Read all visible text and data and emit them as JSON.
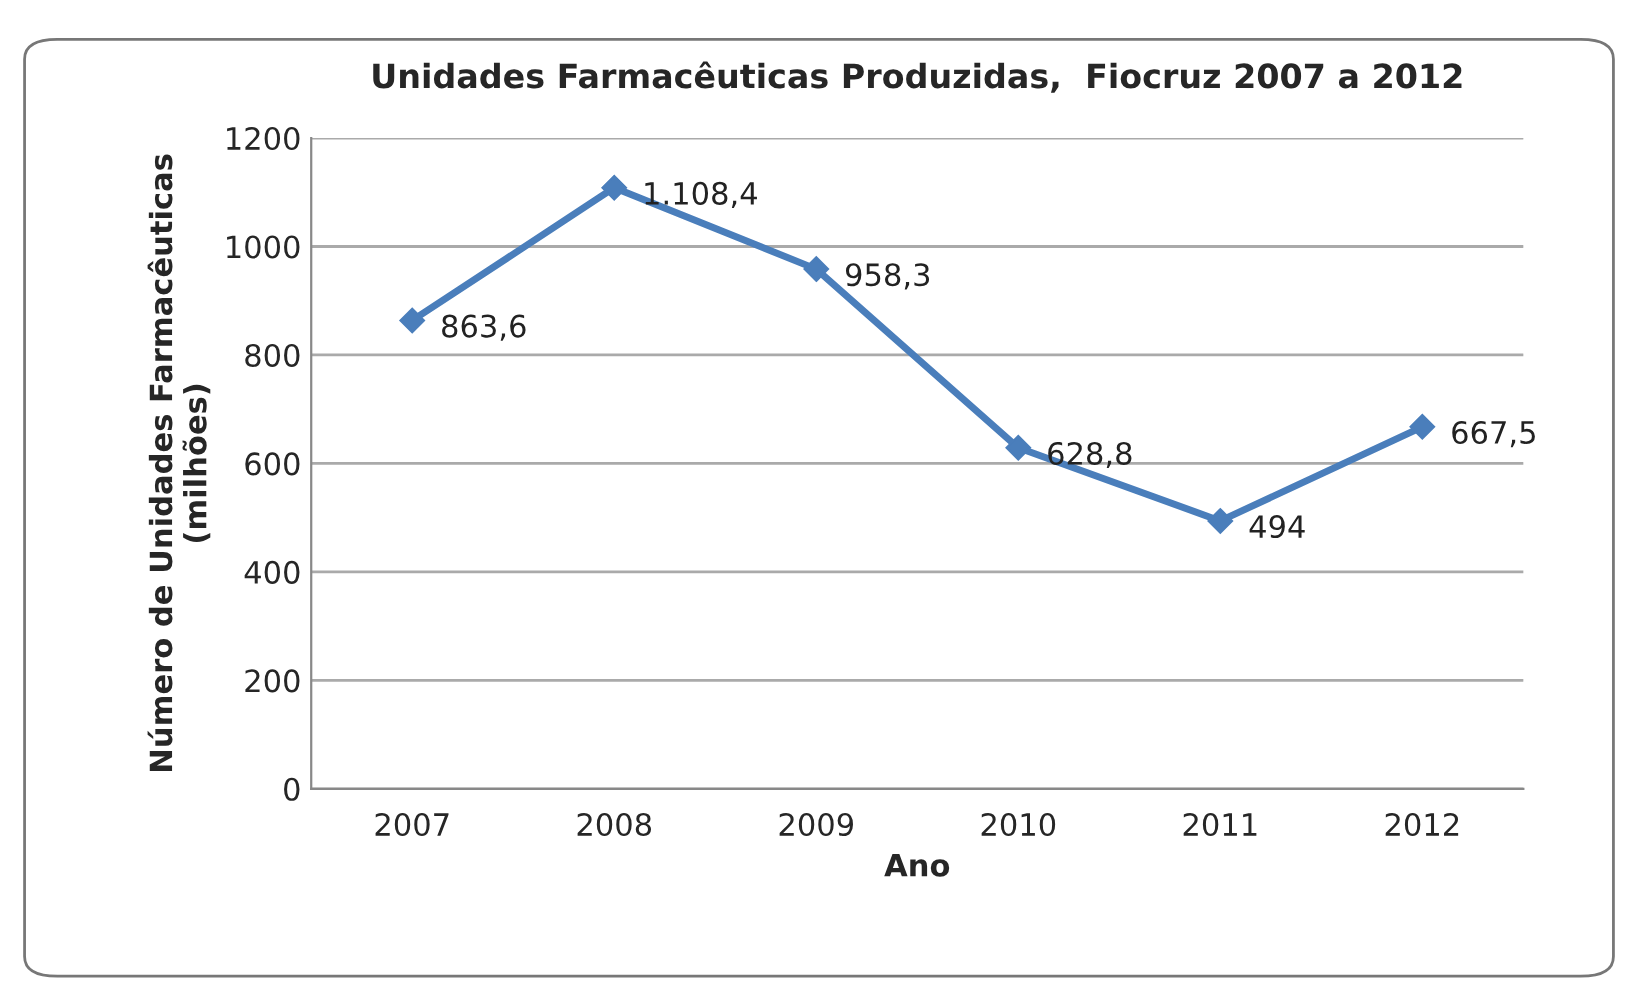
{
  "chart_data": {
    "type": "line",
    "title": "Unidades Farmacêuticas Produzidas,  Fiocruz 2007 a 2012",
    "xlabel": "Ano",
    "ylabel": "Número de Unidades Farmacêuticas\n(milhões)",
    "categories": [
      "2007",
      "2008",
      "2009",
      "2010",
      "2011",
      "2012"
    ],
    "series": [
      {
        "color": "#4a7ebb",
        "values": [
          863.6,
          1108.4,
          958.3,
          628.8,
          494,
          667.5
        ],
        "value_labels": [
          "863,6",
          "1.108,4",
          "958,3",
          "628,8",
          "494",
          "667,5"
        ]
      }
    ],
    "ylim": [
      0,
      1200
    ],
    "yticks": [
      0,
      200,
      400,
      600,
      800,
      1000,
      1200
    ],
    "grid": "y",
    "marker": "diamond",
    "line_style": "solid"
  }
}
